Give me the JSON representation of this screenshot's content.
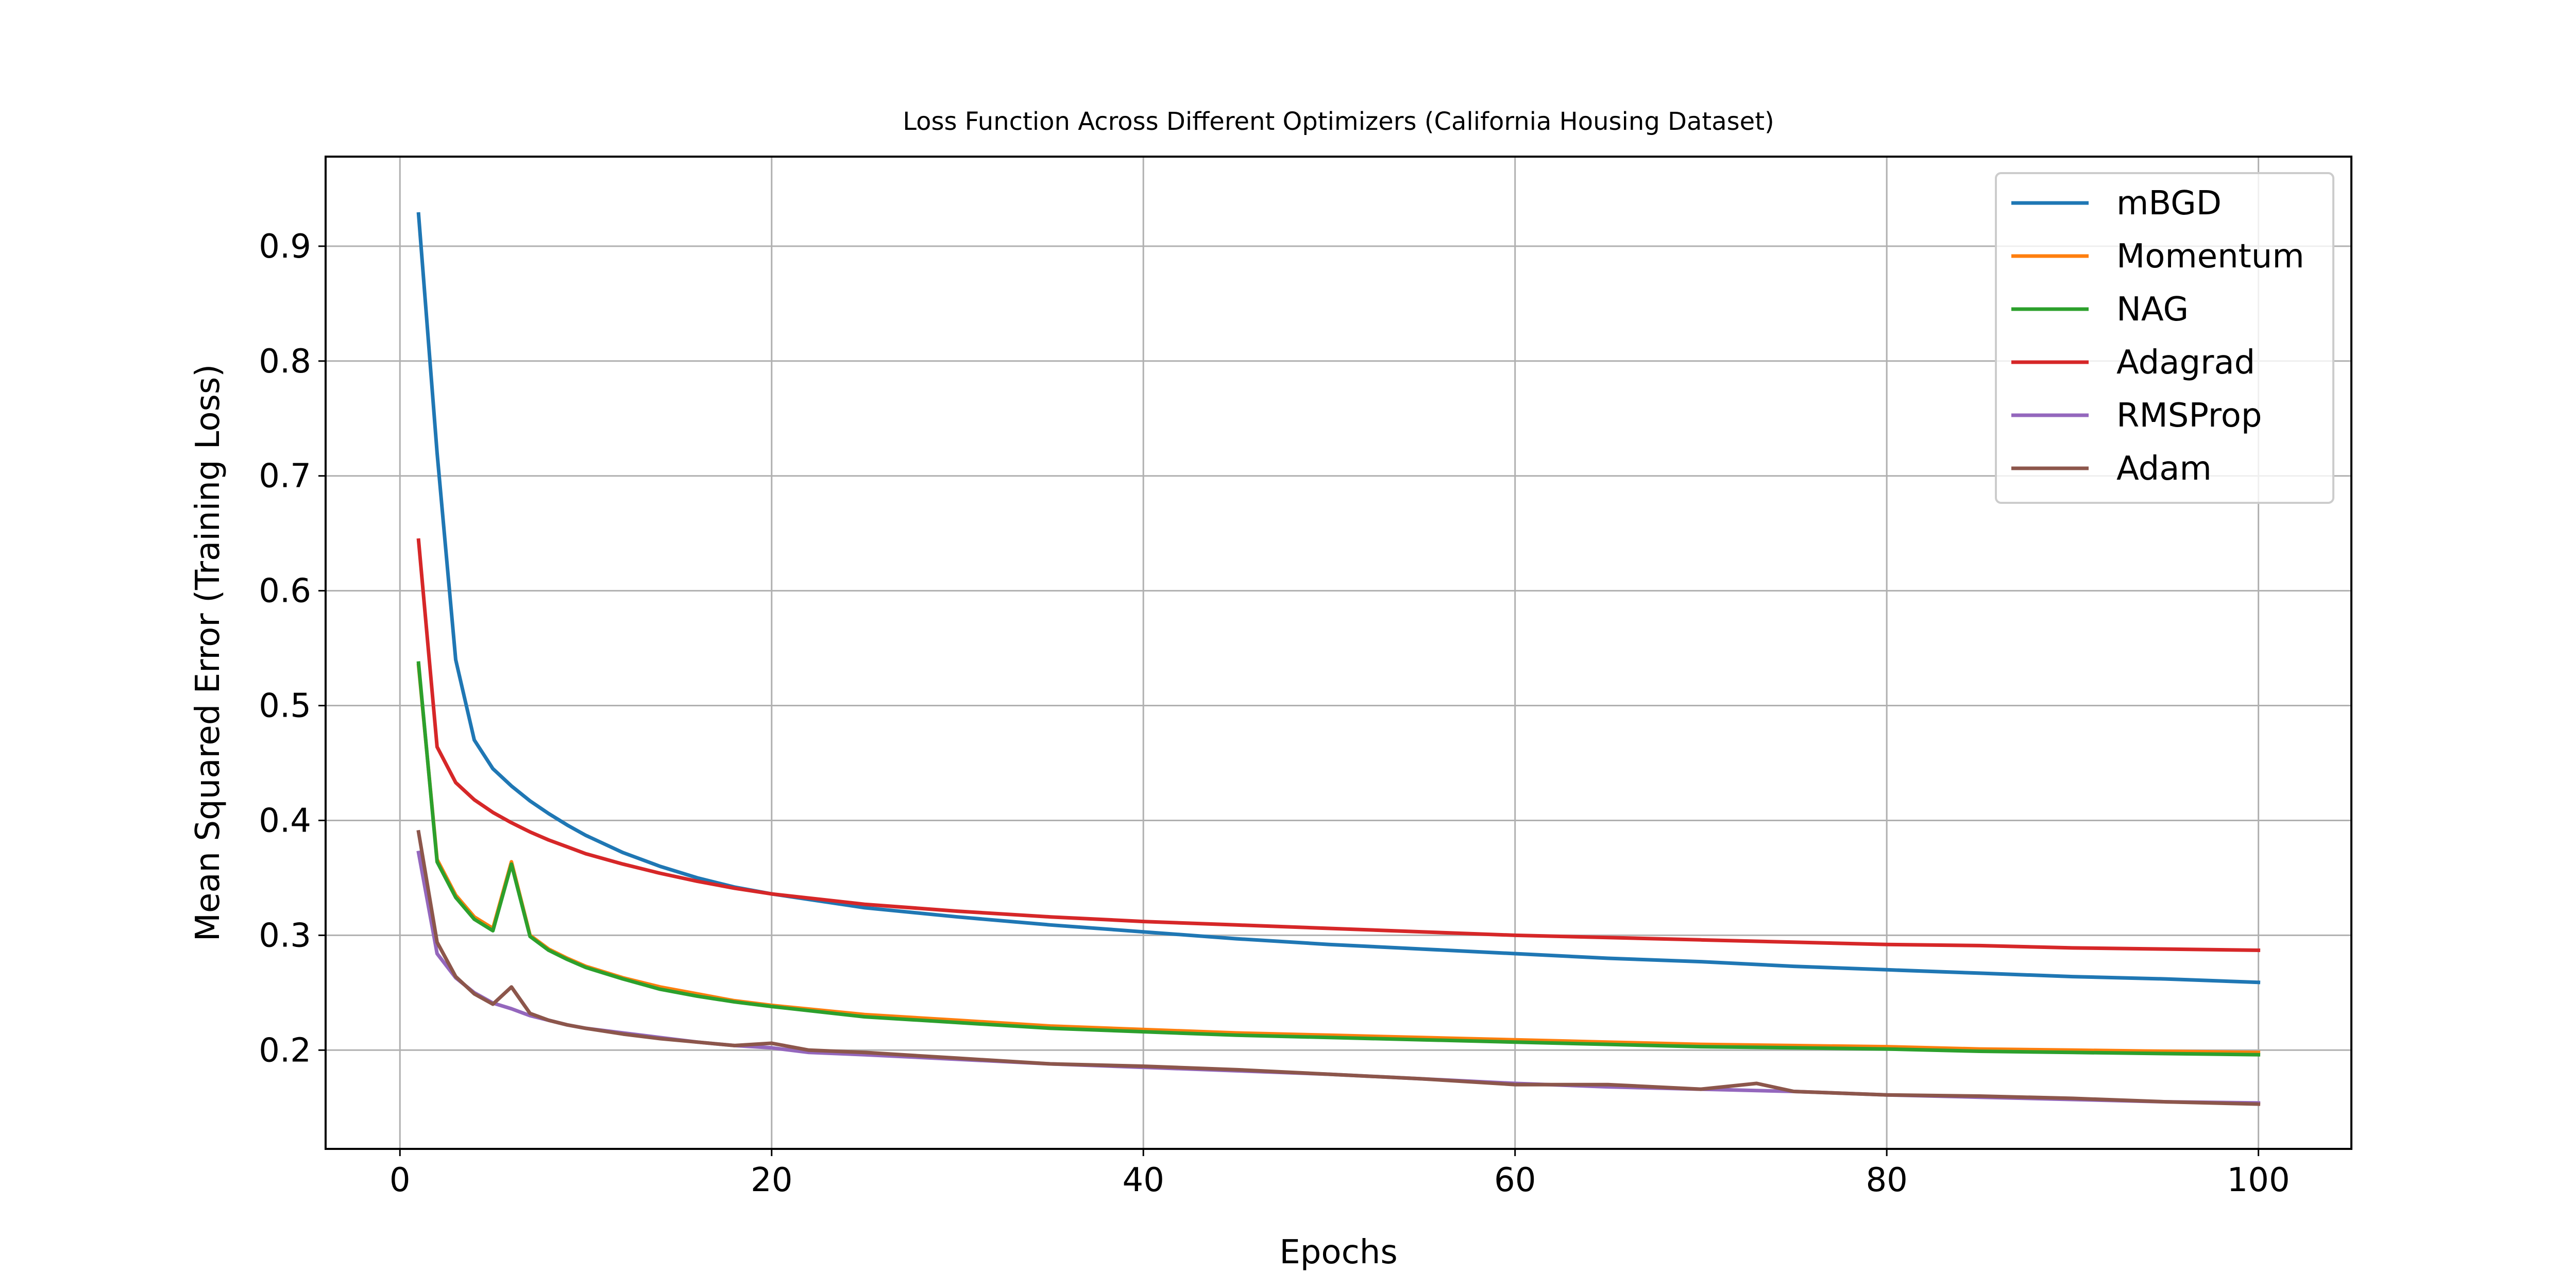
{
  "chart_data": {
    "type": "line",
    "title": "Loss Function Across Different Optimizers (California Housing Dataset)",
    "xlabel": "Epochs",
    "ylabel": "Mean Squared Error (Training Loss)",
    "xlim": [
      -4.0,
      105.0
    ],
    "ylim": [
      0.114,
      0.978
    ],
    "xticks": [
      0,
      20,
      40,
      60,
      80,
      100
    ],
    "yticks": [
      0.2,
      0.3,
      0.4,
      0.5,
      0.6,
      0.7,
      0.8,
      0.9
    ],
    "grid": true,
    "legend_position": "top-right",
    "series": [
      {
        "name": "mBGD",
        "color": "#1f77b4",
        "points": [
          [
            1,
            0.928
          ],
          [
            2,
            0.72
          ],
          [
            3,
            0.54
          ],
          [
            4,
            0.47
          ],
          [
            5,
            0.445
          ],
          [
            6,
            0.43
          ],
          [
            7,
            0.417
          ],
          [
            8,
            0.406
          ],
          [
            9,
            0.396
          ],
          [
            10,
            0.387
          ],
          [
            12,
            0.372
          ],
          [
            14,
            0.36
          ],
          [
            16,
            0.35
          ],
          [
            18,
            0.342
          ],
          [
            20,
            0.336
          ],
          [
            25,
            0.324
          ],
          [
            30,
            0.316
          ],
          [
            35,
            0.309
          ],
          [
            40,
            0.303
          ],
          [
            45,
            0.297
          ],
          [
            50,
            0.292
          ],
          [
            55,
            0.288
          ],
          [
            60,
            0.284
          ],
          [
            65,
            0.28
          ],
          [
            70,
            0.277
          ],
          [
            75,
            0.273
          ],
          [
            80,
            0.27
          ],
          [
            85,
            0.267
          ],
          [
            90,
            0.264
          ],
          [
            95,
            0.262
          ],
          [
            100,
            0.259
          ]
        ]
      },
      {
        "name": "Momentum",
        "color": "#ff7f0e",
        "points": [
          [
            1,
            0.535
          ],
          [
            2,
            0.366
          ],
          [
            3,
            0.335
          ],
          [
            4,
            0.316
          ],
          [
            5,
            0.306
          ],
          [
            6,
            0.364
          ],
          [
            7,
            0.3
          ],
          [
            8,
            0.288
          ],
          [
            9,
            0.28
          ],
          [
            10,
            0.273
          ],
          [
            12,
            0.263
          ],
          [
            14,
            0.255
          ],
          [
            16,
            0.249
          ],
          [
            18,
            0.243
          ],
          [
            20,
            0.239
          ],
          [
            25,
            0.231
          ],
          [
            30,
            0.226
          ],
          [
            35,
            0.221
          ],
          [
            40,
            0.218
          ],
          [
            45,
            0.215
          ],
          [
            50,
            0.213
          ],
          [
            55,
            0.211
          ],
          [
            60,
            0.209
          ],
          [
            65,
            0.207
          ],
          [
            70,
            0.205
          ],
          [
            75,
            0.204
          ],
          [
            80,
            0.203
          ],
          [
            85,
            0.201
          ],
          [
            90,
            0.2
          ],
          [
            95,
            0.199
          ],
          [
            100,
            0.198
          ]
        ]
      },
      {
        "name": "NAG",
        "color": "#2ca02c",
        "points": [
          [
            1,
            0.537
          ],
          [
            2,
            0.364
          ],
          [
            3,
            0.333
          ],
          [
            4,
            0.314
          ],
          [
            5,
            0.304
          ],
          [
            6,
            0.362
          ],
          [
            7,
            0.299
          ],
          [
            8,
            0.287
          ],
          [
            9,
            0.279
          ],
          [
            10,
            0.272
          ],
          [
            12,
            0.262
          ],
          [
            14,
            0.253
          ],
          [
            16,
            0.247
          ],
          [
            18,
            0.242
          ],
          [
            20,
            0.238
          ],
          [
            25,
            0.229
          ],
          [
            30,
            0.224
          ],
          [
            35,
            0.219
          ],
          [
            40,
            0.216
          ],
          [
            45,
            0.213
          ],
          [
            50,
            0.211
          ],
          [
            55,
            0.209
          ],
          [
            60,
            0.207
          ],
          [
            65,
            0.205
          ],
          [
            70,
            0.203
          ],
          [
            75,
            0.202
          ],
          [
            80,
            0.201
          ],
          [
            85,
            0.199
          ],
          [
            90,
            0.198
          ],
          [
            95,
            0.197
          ],
          [
            100,
            0.196
          ]
        ]
      },
      {
        "name": "Adagrad",
        "color": "#d62728",
        "points": [
          [
            1,
            0.644
          ],
          [
            2,
            0.464
          ],
          [
            3,
            0.433
          ],
          [
            4,
            0.418
          ],
          [
            5,
            0.407
          ],
          [
            6,
            0.398
          ],
          [
            7,
            0.39
          ],
          [
            8,
            0.383
          ],
          [
            9,
            0.377
          ],
          [
            10,
            0.371
          ],
          [
            12,
            0.362
          ],
          [
            14,
            0.354
          ],
          [
            16,
            0.347
          ],
          [
            18,
            0.341
          ],
          [
            20,
            0.336
          ],
          [
            25,
            0.327
          ],
          [
            30,
            0.321
          ],
          [
            35,
            0.316
          ],
          [
            40,
            0.312
          ],
          [
            45,
            0.309
          ],
          [
            50,
            0.306
          ],
          [
            55,
            0.303
          ],
          [
            60,
            0.3
          ],
          [
            65,
            0.298
          ],
          [
            70,
            0.296
          ],
          [
            75,
            0.294
          ],
          [
            80,
            0.292
          ],
          [
            85,
            0.291
          ],
          [
            90,
            0.289
          ],
          [
            95,
            0.288
          ],
          [
            100,
            0.287
          ]
        ]
      },
      {
        "name": "RMSProp",
        "color": "#9467bd",
        "points": [
          [
            1,
            0.372
          ],
          [
            2,
            0.284
          ],
          [
            3,
            0.263
          ],
          [
            4,
            0.25
          ],
          [
            5,
            0.241
          ],
          [
            6,
            0.236
          ],
          [
            7,
            0.23
          ],
          [
            8,
            0.226
          ],
          [
            9,
            0.222
          ],
          [
            10,
            0.219
          ],
          [
            12,
            0.215
          ],
          [
            14,
            0.211
          ],
          [
            16,
            0.207
          ],
          [
            18,
            0.204
          ],
          [
            20,
            0.202
          ],
          [
            22,
            0.198
          ],
          [
            25,
            0.196
          ],
          [
            30,
            0.192
          ],
          [
            35,
            0.188
          ],
          [
            40,
            0.185
          ],
          [
            45,
            0.182
          ],
          [
            50,
            0.179
          ],
          [
            55,
            0.175
          ],
          [
            60,
            0.171
          ],
          [
            65,
            0.168
          ],
          [
            70,
            0.166
          ],
          [
            75,
            0.164
          ],
          [
            80,
            0.161
          ],
          [
            85,
            0.159
          ],
          [
            90,
            0.157
          ],
          [
            95,
            0.155
          ],
          [
            100,
            0.154
          ]
        ]
      },
      {
        "name": "Adam",
        "color": "#8c564b",
        "points": [
          [
            1,
            0.39
          ],
          [
            2,
            0.294
          ],
          [
            3,
            0.264
          ],
          [
            4,
            0.249
          ],
          [
            5,
            0.24
          ],
          [
            6,
            0.255
          ],
          [
            7,
            0.232
          ],
          [
            8,
            0.226
          ],
          [
            9,
            0.222
          ],
          [
            10,
            0.219
          ],
          [
            12,
            0.214
          ],
          [
            14,
            0.21
          ],
          [
            16,
            0.207
          ],
          [
            18,
            0.204
          ],
          [
            20,
            0.206
          ],
          [
            22,
            0.2
          ],
          [
            25,
            0.198
          ],
          [
            30,
            0.193
          ],
          [
            35,
            0.188
          ],
          [
            40,
            0.186
          ],
          [
            45,
            0.183
          ],
          [
            50,
            0.179
          ],
          [
            55,
            0.175
          ],
          [
            60,
            0.17
          ],
          [
            65,
            0.17
          ],
          [
            70,
            0.166
          ],
          [
            73,
            0.171
          ],
          [
            75,
            0.164
          ],
          [
            80,
            0.161
          ],
          [
            85,
            0.16
          ],
          [
            90,
            0.158
          ],
          [
            95,
            0.155
          ],
          [
            100,
            0.153
          ]
        ]
      }
    ]
  }
}
